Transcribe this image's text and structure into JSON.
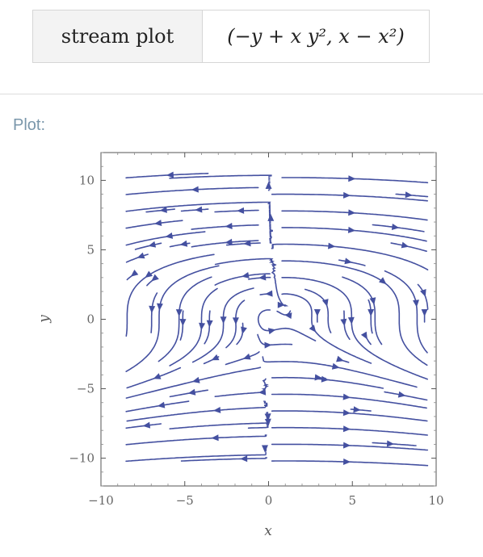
{
  "input": {
    "label": "stream plot",
    "expression": "(−y + x y², x − x²)"
  },
  "pod": {
    "title": "Plot:"
  },
  "chart_data": {
    "type": "stream",
    "title": "",
    "xlabel": "x",
    "ylabel": "y",
    "xlim": [
      -10,
      10
    ],
    "ylim": [
      -12,
      12
    ],
    "xticks": [
      -10,
      -5,
      0,
      5,
      10
    ],
    "yticks": [
      -10,
      -5,
      0,
      5,
      10
    ],
    "xtick_labels": [
      "−10",
      "−5",
      "0",
      "5",
      "10"
    ],
    "ytick_labels": [
      "−10",
      "−5",
      "0",
      "5",
      "10"
    ],
    "vector_field": {
      "u": "-y + x*y^2",
      "v": "x - x^2"
    },
    "stream_region": {
      "x": [
        -8.5,
        9.5
      ],
      "y": [
        -11,
        10.5
      ]
    },
    "line_color": "#4450a0",
    "grid": false
  }
}
